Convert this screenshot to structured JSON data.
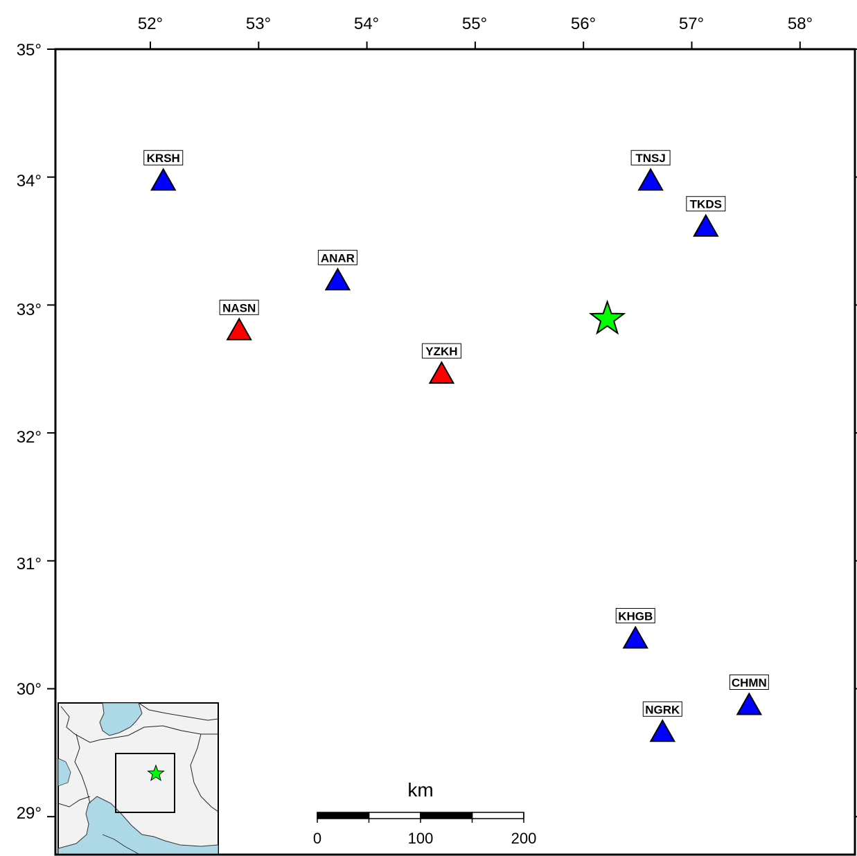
{
  "map": {
    "lon_range": [
      51.0,
      58.5
    ],
    "lat_range": [
      28.6,
      35.0
    ],
    "lon_ticks": [
      "52°",
      "53°",
      "54°",
      "55°",
      "56°",
      "57°",
      "58°"
    ],
    "lat_ticks": [
      "35°",
      "34°",
      "33°",
      "32°",
      "31°",
      "30°",
      "29°"
    ],
    "colors": {
      "frame": "#000000",
      "station_blue": "#0000ff",
      "station_red": "#ff0000",
      "epicenter": "#00ff00",
      "inset_sea": "#add8e6",
      "inset_land": "#f2f2f2"
    },
    "stations": [
      {
        "code": "KRSH",
        "lon": 52.12,
        "lat": 33.97,
        "color": "blue"
      },
      {
        "code": "ANAR",
        "lon": 53.73,
        "lat": 33.19,
        "color": "blue"
      },
      {
        "code": "NASN",
        "lon": 52.82,
        "lat": 32.8,
        "color": "red"
      },
      {
        "code": "YZKH",
        "lon": 54.69,
        "lat": 32.46,
        "color": "red"
      },
      {
        "code": "TNSJ",
        "lon": 56.62,
        "lat": 33.97,
        "color": "blue"
      },
      {
        "code": "TKDS",
        "lon": 57.13,
        "lat": 33.61,
        "color": "blue"
      },
      {
        "code": "KHGB",
        "lon": 56.48,
        "lat": 30.39,
        "color": "blue"
      },
      {
        "code": "CHMN",
        "lon": 57.53,
        "lat": 29.87,
        "color": "blue"
      },
      {
        "code": "NGRK",
        "lon": 56.73,
        "lat": 29.66,
        "color": "blue"
      }
    ],
    "epicenter": {
      "lon": 56.22,
      "lat": 32.89,
      "icon": "star-icon"
    },
    "scale_bar": {
      "unit": "km",
      "labels": [
        "0",
        "100",
        "200"
      ],
      "max_km": 200,
      "segments": 4
    },
    "inset": {
      "description_icon": "inset-locator-map",
      "epicenter_icon": "star-icon"
    }
  }
}
